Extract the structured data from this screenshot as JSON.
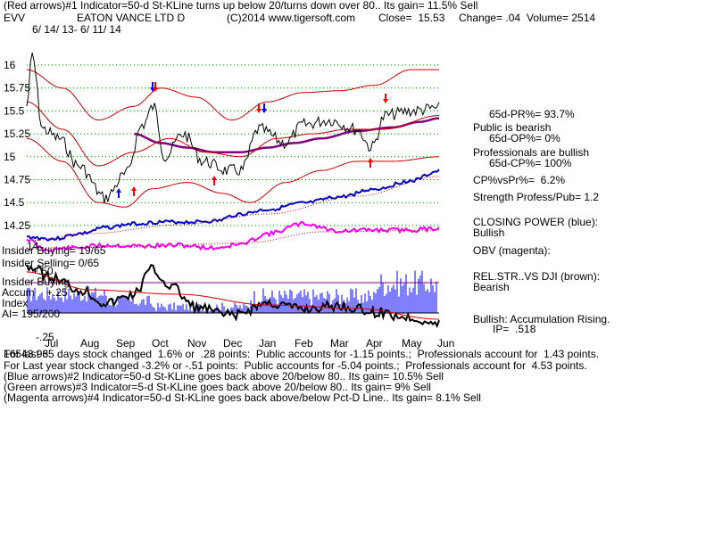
{
  "header": {
    "line1": "(Red arrows)#1 Indicator=50-d St-KLine turns up below 20/turns down over 80.. Its gain= 11.5% Sell",
    "ticker": "EVV",
    "company": "EATON VANCE LTD D",
    "copyright": "(C)2014 www.tigersoft.com",
    "close": "Close=  15.53",
    "change": "Change= .04",
    "volume": "Volume= 2514",
    "date_range": "6/ 14/ 13- 6/ 11/ 14"
  },
  "right_panel": {
    "pr": "65d-PR%= 93.7%",
    "public_bearish": "Public is bearish",
    "op": "65d-OP%= 0%",
    "prof_bullish": "Professionals are bullish",
    "cp": "65d-CP%= 100%",
    "cpvspr": "CP%vsPr%=  6.2%",
    "strength": "Strength Profess/Pub= 1.2",
    "closing_power": "CLOSING POWER (blue):",
    "cp_state": "Bullish",
    "obv": "OBV (magenta):",
    "relstr": "REL.STR..VS DJI (brown):",
    "relstr_state": "Bearish",
    "accum": "Bullish: Accumulation Rising.",
    "ip": "IP=  .518"
  },
  "left_panel": {
    "insider_buying": "Insider Buying= 19/65",
    "insider_selling": "Insider Selling= 0/65",
    "insider_buying2": "Insider Buying",
    "accum_label": "Accum",
    "index_label": "Index",
    "ai": "AI= 195/200",
    "plus50": "+.50",
    "plus25": "+.25",
    "minus25": "-.25",
    "num14": "14"
  },
  "footer": {
    "line1": "For last 65 days stock changed  1.6% or  .28 points:  Public accounts for -1.15 points.;  Professionals account for  1.43 points.",
    "overlap": "16543.98",
    "line2": "For Last year stock changed -3.2% or -.51 points:  Public accounts for -5.04 points.;  Professionals account for  4.53 points.",
    "line3": "(Blue arrows)#2 Indicator=50-d St-KLine goes back above 20/below 80.. Its gain= 10.5% Sell",
    "line4": "(Green arrows)#3 Indicator=5-d St-KLine goes back above 20/below 80.. Its gain= 9% Sell",
    "line5": "(Magenta arrows)#4 Indicator=50-d St-KLine goes back above/below Pct-D Line.. Its gain= 8.1% Sell"
  },
  "colors": {
    "price": "#000000",
    "band": "#cc0000",
    "ma": "#800080",
    "closing_power": "#0000cc",
    "obv": "#ff00ff",
    "accum_bars": "#0000ff",
    "relstr": "#8b4513",
    "grid": "#008000",
    "arrow_red": "#ff0000",
    "arrow_blue": "#0000ff"
  },
  "chart_data": {
    "type": "line",
    "title": "EATON VANCE LTD D",
    "y_ticks": [
      "16",
      "15.75",
      "15.5",
      "15.25",
      "15",
      "14.75",
      "14.5",
      "14.25"
    ],
    "y_tick_values": [
      16,
      15.75,
      15.5,
      15.25,
      15,
      14.75,
      14.5,
      14.25
    ],
    "ylim": [
      14.15,
      16.25
    ],
    "x_ticks": [
      "Jul",
      "Aug",
      "Sep",
      "Oct",
      "Nov",
      "Dec",
      "Jan",
      "Feb",
      "Mar",
      "Apr",
      "May",
      "Jun"
    ],
    "grid": true,
    "price_closes_monthly": [
      15.9,
      14.7,
      15.3,
      15.2,
      14.9,
      14.9,
      15.3,
      15.2,
      15.35,
      15.2,
      15.5,
      15.53
    ],
    "red_arrows_up_months": [
      1.4,
      4.1,
      9.2
    ],
    "red_arrows_down_months": [
      2.4,
      6.6,
      9.3
    ]
  }
}
